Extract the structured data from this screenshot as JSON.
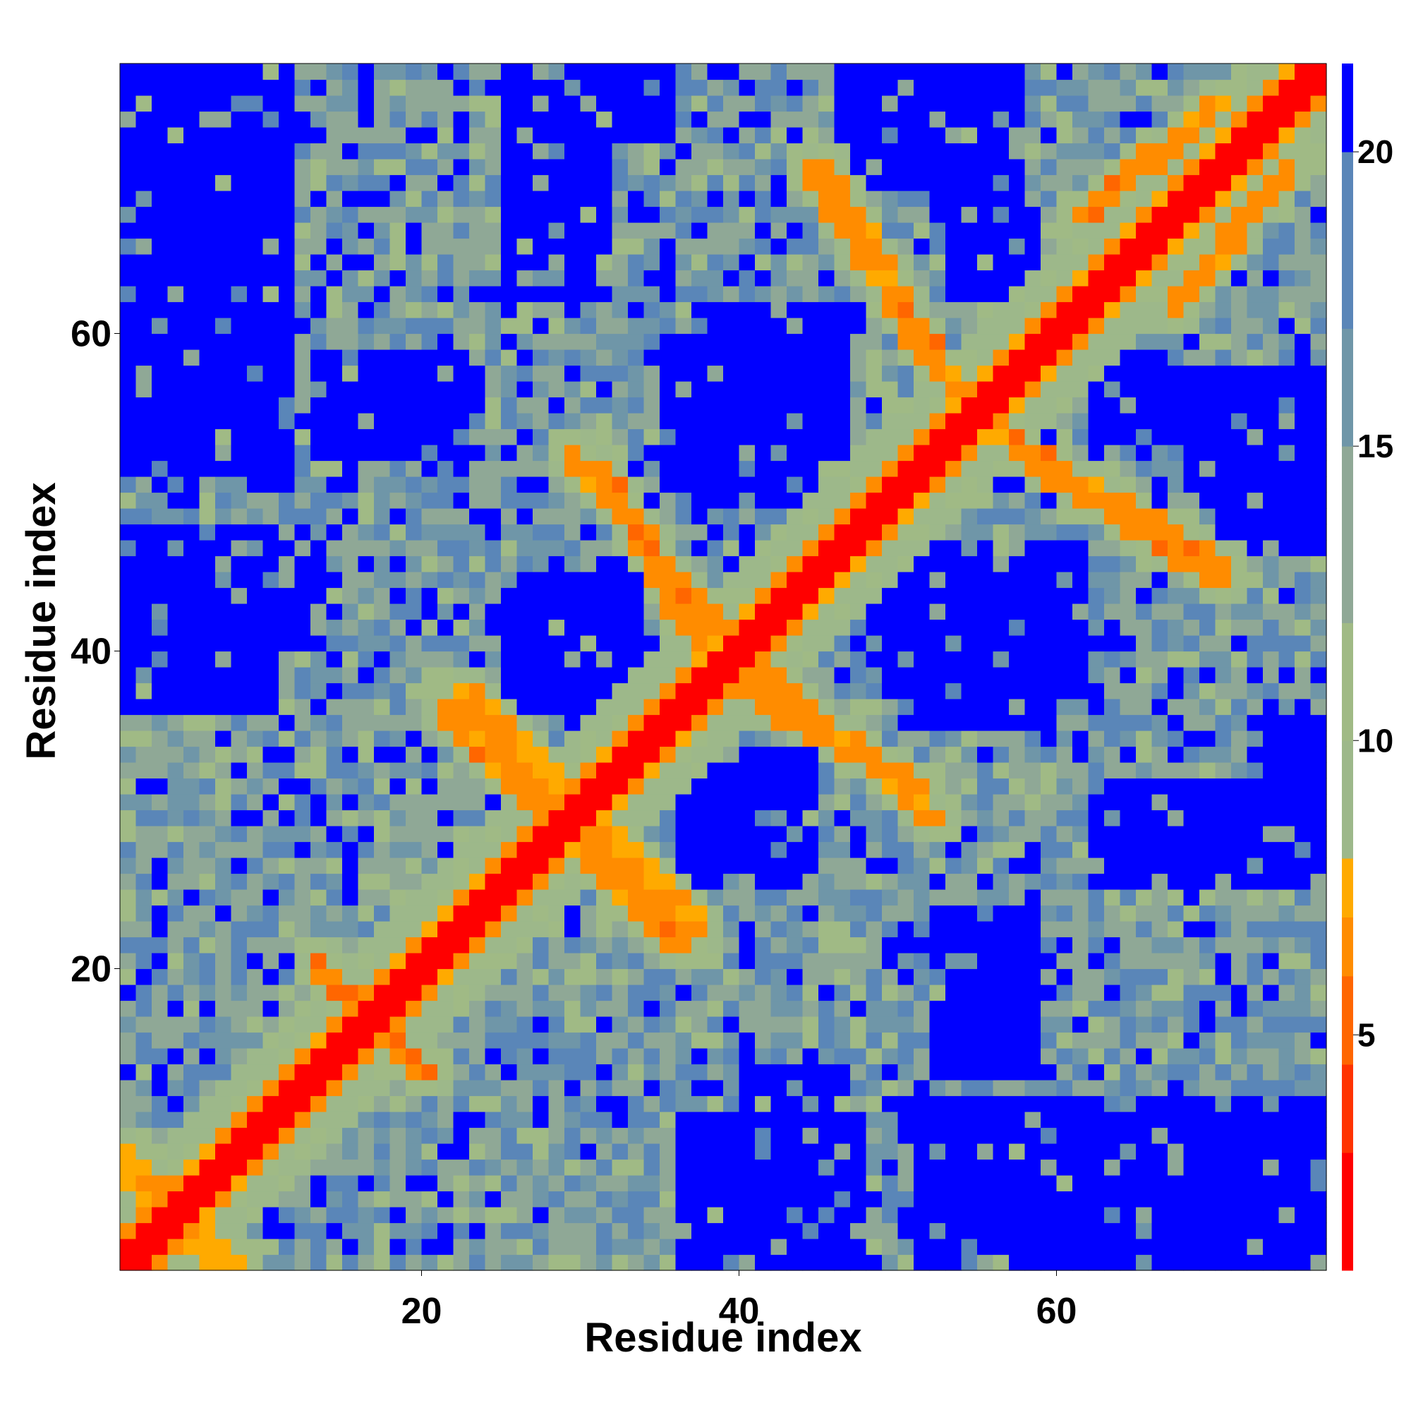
{
  "chart_data": {
    "type": "heatmap",
    "title": "",
    "xlabel": "Residue index",
    "ylabel": "Residue index",
    "n_residues": 76,
    "x_range": [
      1,
      77
    ],
    "y_range": [
      1,
      77
    ],
    "x_ticks": [
      20,
      40,
      60
    ],
    "y_ticks": [
      20,
      40,
      60
    ],
    "grid": false,
    "colorbar": {
      "placement": "right",
      "ticks": [
        5,
        10,
        15,
        20
      ],
      "range": [
        1,
        21.5
      ],
      "bands": [
        {
          "from": 1,
          "to": 3,
          "color": "#ff0000"
        },
        {
          "from": 3,
          "to": 4.5,
          "color": "#ff3300"
        },
        {
          "from": 4.5,
          "to": 6,
          "color": "#ff6600"
        },
        {
          "from": 6,
          "to": 7,
          "color": "#ff8c00"
        },
        {
          "from": 7,
          "to": 8,
          "color": "#ffaa00"
        },
        {
          "from": 8,
          "to": 10,
          "color": "#9db88a"
        },
        {
          "from": 10,
          "to": 12,
          "color": "#a0ba85"
        },
        {
          "from": 12,
          "to": 15,
          "color": "#8fa896"
        },
        {
          "from": 15,
          "to": 17,
          "color": "#6f96a8"
        },
        {
          "from": 17,
          "to": 20,
          "color": "#5a86b8"
        },
        {
          "from": 20,
          "to": 21.5,
          "color": "#0000ff"
        }
      ]
    },
    "values_description_note": "",
    "series": [
      {
        "name": "",
        "kind": "diagonal_band",
        "distance_range": [
          1,
          3
        ]
      },
      {
        "name": "",
        "kind": "helix_contacts",
        "distance_range": [
          6,
          8
        ]
      },
      {
        "name": "",
        "kind": "background",
        "distance_range": [
          9,
          21.5
        ]
      }
    ],
    "contact_lines": [
      {
        "from": [
          1,
          6
        ],
        "to": [
          8,
          1
        ],
        "value": 7
      },
      {
        "from": [
          14,
          18
        ],
        "to": [
          20,
          13
        ],
        "value": 6
      },
      {
        "from": [
          22,
          37
        ],
        "to": [
          29,
          30
        ],
        "value": 7
      },
      {
        "from": [
          30,
          27
        ],
        "to": [
          36,
          21
        ],
        "value": 6.5
      },
      {
        "from": [
          29,
          52
        ],
        "to": [
          38,
          41
        ],
        "value": 6.5
      },
      {
        "from": [
          38,
          38
        ],
        "to": [
          51,
          31
        ],
        "value": 6.5
      },
      {
        "from": [
          44,
          70
        ],
        "to": [
          52,
          57
        ],
        "value": 6.5
      },
      {
        "from": [
          54,
          54
        ],
        "to": [
          70,
          45
        ],
        "value": 6.5
      },
      {
        "from": [
          61,
          67
        ],
        "to": [
          70,
          74
        ],
        "value": 6.5
      }
    ],
    "blue_patches": [
      {
        "x": [
          2,
          10
        ],
        "y": [
          66,
          77
        ]
      },
      {
        "x": [
          2,
          6
        ],
        "y": [
          53,
          62
        ]
      },
      {
        "x": [
          9,
          11
        ],
        "y": [
          50,
          57
        ]
      },
      {
        "x": [
          15,
          21
        ],
        "y": [
          54,
          58
        ]
      },
      {
        "x": [
          37,
          46
        ],
        "y": [
          49,
          61
        ]
      },
      {
        "x": [
          52,
          57
        ],
        "y": [
          67,
          72
        ]
      },
      {
        "x": [
          62,
          66
        ],
        "y": [
          53,
          58
        ]
      },
      {
        "x": [
          69,
          76
        ],
        "y": [
          46,
          57
        ]
      },
      {
        "x": [
          2,
          4
        ],
        "y": [
          37,
          47
        ]
      },
      {
        "x": [
          7,
          13
        ],
        "y": [
          40,
          46
        ]
      },
      {
        "x": [
          25,
          32
        ],
        "y": [
          36,
          43
        ]
      },
      {
        "x": [
          50,
          59
        ],
        "y": [
          35,
          45
        ]
      },
      {
        "x": [
          38,
          44
        ],
        "y": [
          26,
          33
        ]
      },
      {
        "x": [
          52,
          58
        ],
        "y": [
          13,
          23
        ]
      },
      {
        "x": [
          36,
          47
        ],
        "y": [
          1,
          10
        ]
      },
      {
        "x": [
          51,
          76
        ],
        "y": [
          1,
          11
        ]
      },
      {
        "x": [
          62,
          76
        ],
        "y": [
          25,
          31
        ]
      },
      {
        "x": [
          72,
          76
        ],
        "y": [
          29,
          35
        ]
      }
    ]
  }
}
